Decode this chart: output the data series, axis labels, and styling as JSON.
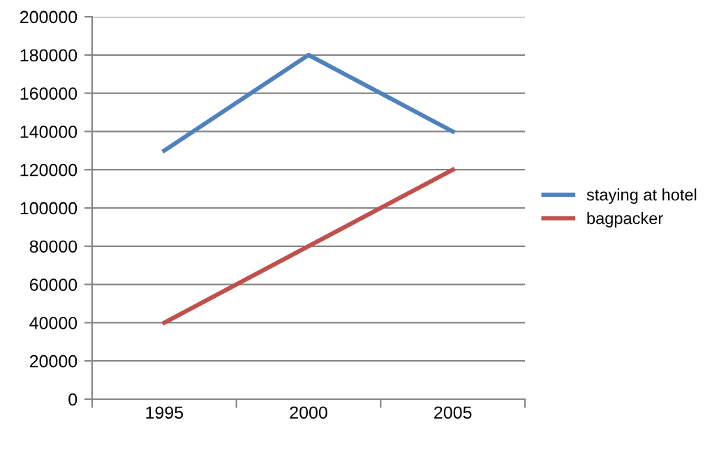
{
  "chart_data": {
    "type": "line",
    "categories": [
      "1995",
      "2000",
      "2005"
    ],
    "series": [
      {
        "name": "staying at hotel",
        "color": "#4f81bd",
        "values": [
          130000,
          180000,
          140000
        ]
      },
      {
        "name": "bagpacker",
        "color": "#c0504d",
        "values": [
          40000,
          80000,
          120000
        ]
      }
    ],
    "ylim": [
      0,
      200000
    ],
    "yticks": [
      0,
      20000,
      40000,
      60000,
      80000,
      100000,
      120000,
      140000,
      160000,
      180000,
      200000
    ],
    "grid": "y",
    "legend": "right",
    "marker": "none",
    "line_style": "solid"
  }
}
